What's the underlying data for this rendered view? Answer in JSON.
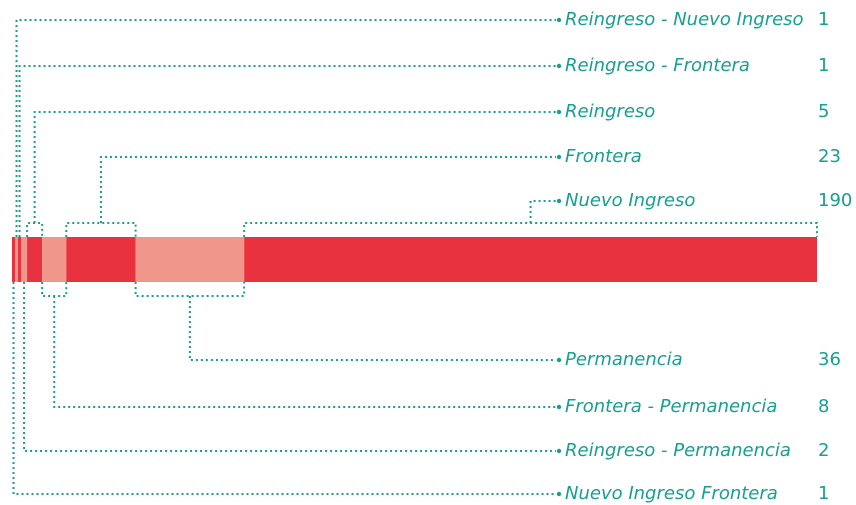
{
  "chart_data": {
    "type": "bar",
    "categories": [
      "Nuevo Ingreso Frontera",
      "Reingreso - Nuevo Ingreso",
      "Reingreso - Frontera",
      "Reingreso - Permanencia",
      "Reingreso",
      "Frontera - Permanencia",
      "Frontera",
      "Permanencia",
      "Nuevo Ingreso"
    ],
    "values": [
      1,
      1,
      1,
      2,
      5,
      8,
      23,
      36,
      190
    ],
    "colors": [
      "#e8323f",
      "#f0968a",
      "#e8323f",
      "#f0968a",
      "#e8323f",
      "#f0968a",
      "#e8323f",
      "#f0968a",
      "#e8323f"
    ],
    "label_side": [
      "bottom",
      "top",
      "top",
      "bottom",
      "top",
      "bottom",
      "top",
      "bottom",
      "top"
    ]
  }
}
